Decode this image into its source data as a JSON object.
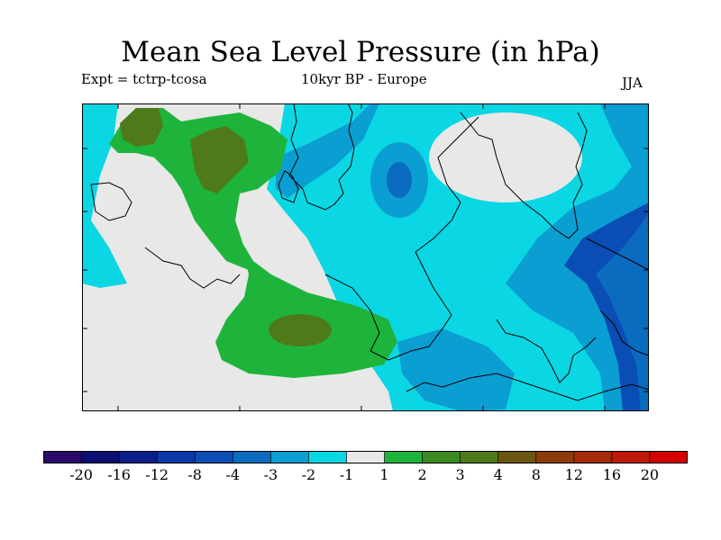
{
  "title": "Mean Sea Level Pressure (in hPa)",
  "experiment": "Expt = tctrp-tcosa",
  "period": "10kyr BP - Europe",
  "season": "JJA",
  "colorbar": {
    "labels": [
      "-20",
      "-16",
      "-12",
      "-8",
      "-4",
      "-3",
      "-2",
      "-1",
      "1",
      "2",
      "3",
      "4",
      "8",
      "12",
      "16",
      "20"
    ],
    "colors": [
      "#2a0a6b",
      "#0b0e72",
      "#0a1e8a",
      "#0a38a8",
      "#0a4db5",
      "#0a6bbf",
      "#0a9ed2",
      "#0ad7e3",
      "#e8e8e8",
      "#1eb43c",
      "#3d8a23",
      "#4e7a1a",
      "#6a5512",
      "#8c3c0a",
      "#a52a0a",
      "#be1a0a",
      "#d40000"
    ]
  },
  "map_colors": {
    "neutral": "#e8e8e8",
    "light_blue": "#0ad7e3",
    "mid_blue": "#0a9ed2",
    "blue": "#0a6bbf",
    "deep_blue": "#0a4db5",
    "light_green": "#1eb43c",
    "dark_green": "#4e7a1a",
    "coast": "#000000"
  }
}
